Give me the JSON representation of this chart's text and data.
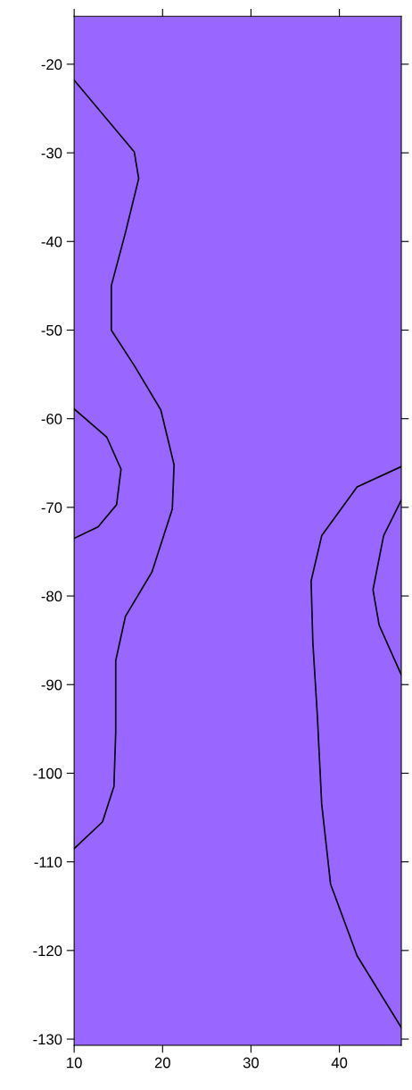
{
  "chart_data": {
    "type": "line",
    "xlim": [
      10,
      47
    ],
    "ylim": [
      -130.7,
      -14.6
    ],
    "xticks": [
      10,
      20,
      30,
      40
    ],
    "yticks": [
      -130,
      -120,
      -110,
      -100,
      -90,
      -80,
      -70,
      -60,
      -50,
      -40,
      -30,
      -20
    ],
    "grid": false,
    "marker": "none",
    "line_style": "solid",
    "bands": [
      {
        "axis": "x",
        "from": 10,
        "to": 47,
        "color": "#9966ff"
      }
    ],
    "series": [
      {
        "color": "#000000",
        "x": [
          10,
          16.8,
          17.3,
          15.8,
          14.2,
          14.2,
          16.8,
          19.8,
          21.3,
          21.1,
          18.8,
          15.8,
          14.7,
          14.7,
          14.5,
          13.2,
          10
        ],
        "values": [
          -21.8,
          -29.9,
          -32.9,
          -39,
          -45,
          -50,
          -54,
          -59,
          -65.2,
          -70.2,
          -77.3,
          -82.3,
          -87.3,
          -95.4,
          -101.5,
          -105.5,
          -108.5
        ]
      },
      {
        "color": "#000000",
        "x": [
          10,
          13.7,
          15.3,
          14.8,
          12.7,
          10
        ],
        "values": [
          -58.9,
          -62.1,
          -65.7,
          -69.7,
          -72.2,
          -73.5
        ]
      },
      {
        "color": "#000000",
        "x": [
          47,
          42,
          38,
          36.8,
          37,
          37.5,
          38,
          39,
          42,
          47
        ],
        "values": [
          -65.4,
          -67.7,
          -73.2,
          -78.3,
          -85.3,
          -93.4,
          -103.5,
          -112.5,
          -120.6,
          -128.7
        ]
      },
      {
        "color": "#000000",
        "x": [
          47,
          45,
          43.8,
          44.5,
          47
        ],
        "values": [
          -69.2,
          -73.2,
          -79.3,
          -83.3,
          -88.9
        ]
      }
    ]
  }
}
